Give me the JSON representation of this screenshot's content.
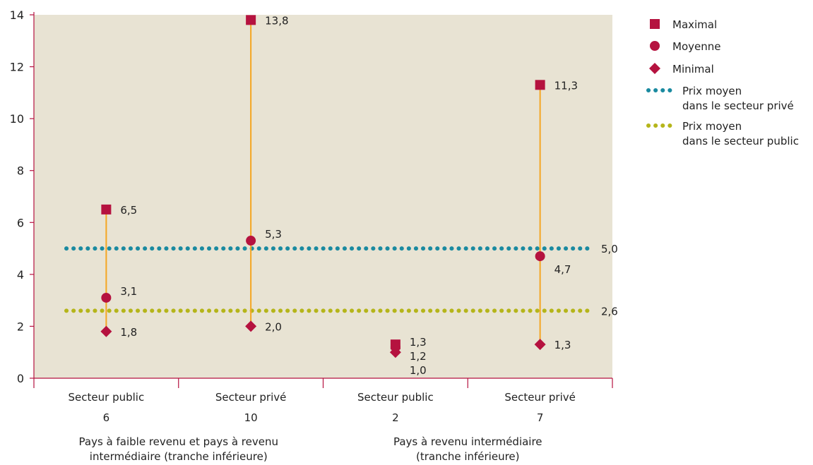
{
  "colors": {
    "plot_bg": "#e8e3d3",
    "marker": "#b5123f",
    "range_line": "#f5a623",
    "private_avg": "#1a8aa0",
    "public_avg": "#b5b51a",
    "axis": "#b5123f"
  },
  "legend": [
    {
      "key": "max",
      "label_lines": [
        "Maximal"
      ],
      "symbol": "square"
    },
    {
      "key": "mean",
      "label_lines": [
        "Moyenne"
      ],
      "symbol": "circle"
    },
    {
      "key": "min",
      "label_lines": [
        "Minimal"
      ],
      "symbol": "diamond"
    },
    {
      "key": "private_avg",
      "label_lines": [
        "Prix moyen",
        "dans le secteur privé"
      ],
      "symbol": "dotted-blue"
    },
    {
      "key": "public_avg",
      "label_lines": [
        "Prix moyen",
        "dans le secteur public"
      ],
      "symbol": "dotted-green"
    }
  ],
  "chart_data": {
    "type": "range-dot",
    "ylim": [
      0,
      14
    ],
    "yticks": [
      0,
      2,
      4,
      6,
      8,
      10,
      12,
      14
    ],
    "grid": false,
    "legend_position": "right",
    "categories": [
      {
        "sector": "Secteur public",
        "count": "6",
        "max": 6.5,
        "mean": 3.1,
        "min": 1.8,
        "labels": {
          "max": "6,5",
          "mean": "3,1",
          "min": "1,8"
        }
      },
      {
        "sector": "Secteur privé",
        "count": "10",
        "max": 13.8,
        "mean": 5.3,
        "min": 2.0,
        "labels": {
          "max": "13,8",
          "mean": "5,3",
          "min": "2,0"
        }
      },
      {
        "sector": "Secteur public",
        "count": "2",
        "max": 1.3,
        "mean": 1.2,
        "min": 1.0,
        "labels": {
          "max": "1,3",
          "mean": "1,2",
          "min": "1,0"
        }
      },
      {
        "sector": "Secteur privé",
        "count": "7",
        "max": 11.3,
        "mean": 4.7,
        "min": 1.3,
        "labels": {
          "max": "11,3",
          "mean": "4,7",
          "min": "1,3"
        }
      }
    ],
    "groups": [
      {
        "label_lines": [
          "Pays à faible revenu et pays à revenu",
          "intermédiaire (tranche inférieure)"
        ],
        "span": [
          0,
          1
        ]
      },
      {
        "label_lines": [
          "Pays à revenu intermédiaire",
          "(tranche inférieure)"
        ],
        "span": [
          2,
          3
        ]
      }
    ],
    "reference_lines": [
      {
        "key": "private_avg",
        "value": 5.0,
        "label": "5,0"
      },
      {
        "key": "public_avg",
        "value": 2.6,
        "label": "2,6"
      }
    ]
  }
}
